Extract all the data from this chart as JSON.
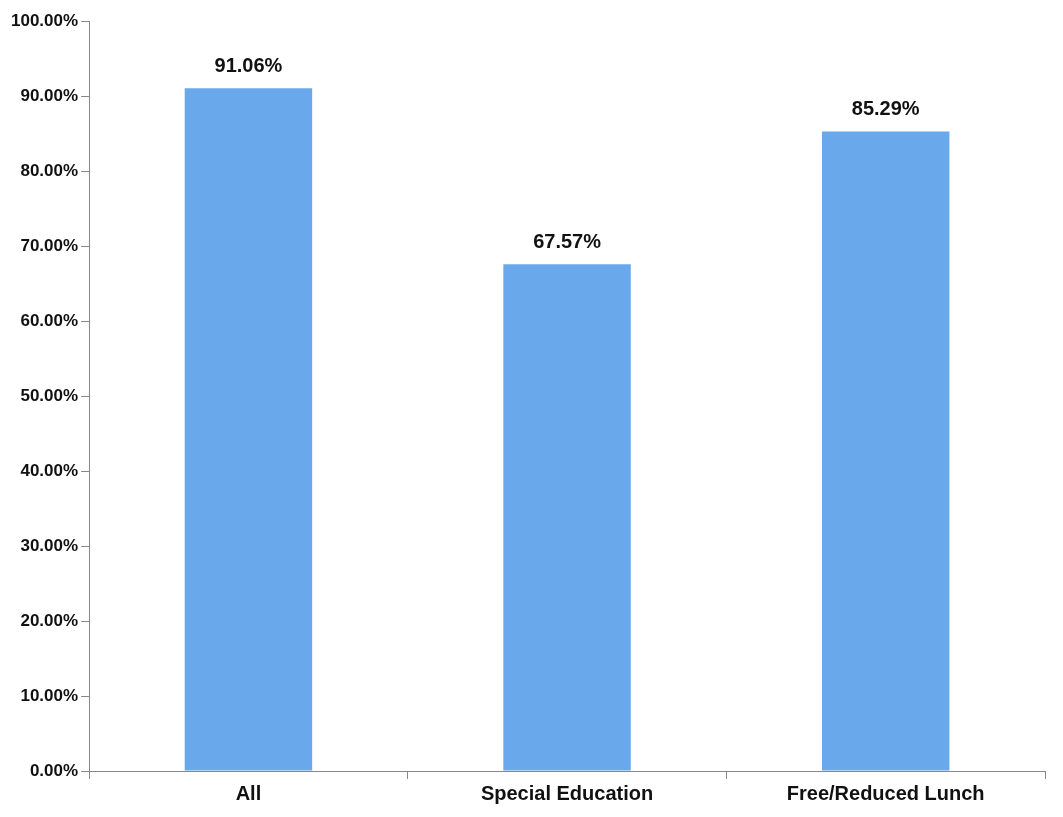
{
  "chart_data": {
    "type": "bar",
    "categories": [
      "All",
      "Special Education",
      "Free/Reduced Lunch"
    ],
    "values": [
      91.06,
      67.57,
      85.29
    ],
    "color": "#6aa8ec",
    "value_labels": [
      "91.06%",
      "67.57%",
      "85.29%"
    ],
    "ylim": [
      0,
      100
    ],
    "yticks": [
      {
        "value": 0,
        "label": "0.00%"
      },
      {
        "value": 10,
        "label": "10.00%"
      },
      {
        "value": 20,
        "label": "20.00%"
      },
      {
        "value": 30,
        "label": "30.00%"
      },
      {
        "value": 40,
        "label": "40.00%"
      },
      {
        "value": 50,
        "label": "50.00%"
      },
      {
        "value": 60,
        "label": "60.00%"
      },
      {
        "value": 70,
        "label": "70.00%"
      },
      {
        "value": 80,
        "label": "80.00%"
      },
      {
        "value": 90,
        "label": "90.00%"
      },
      {
        "value": 100,
        "label": "100.00%"
      }
    ],
    "grid": false,
    "legend": false
  }
}
